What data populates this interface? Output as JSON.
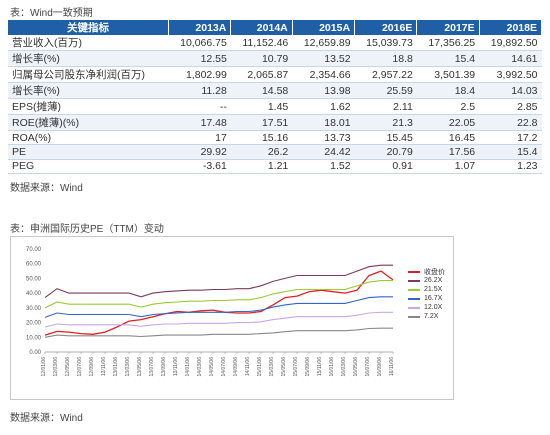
{
  "caption_table": "表：Wind一致预期",
  "table": {
    "headers": [
      "关键指标",
      "2013A",
      "2014A",
      "2015A",
      "2016E",
      "2017E",
      "2018E"
    ],
    "rows": [
      [
        "营业收入(百万)",
        "10,066.75",
        "11,152.46",
        "12,659.89",
        "15,039.73",
        "17,356.25",
        "19,892.50"
      ],
      [
        "增长率(%)",
        "12.55",
        "10.79",
        "13.52",
        "18.8",
        "15.4",
        "14.61"
      ],
      [
        "归属母公司股东净利润(百万)",
        "1,802.99",
        "2,065.87",
        "2,354.66",
        "2,957.22",
        "3,501.39",
        "3,992.50"
      ],
      [
        "增长率(%)",
        "11.28",
        "14.58",
        "13.98",
        "25.59",
        "18.4",
        "14.03"
      ],
      [
        "EPS(摊薄)",
        "--",
        "1.45",
        "1.62",
        "2.11",
        "2.5",
        "2.85"
      ],
      [
        "ROE(摊薄)(%)",
        "17.48",
        "17.51",
        "18.01",
        "21.3",
        "22.05",
        "22.8"
      ],
      [
        "ROA(%)",
        "17",
        "15.16",
        "13.73",
        "15.45",
        "16.45",
        "17.2"
      ],
      [
        "PE",
        "29.92",
        "26.2",
        "24.42",
        "20.79",
        "17.56",
        "15.4"
      ],
      [
        "PEG",
        "-3.61",
        "1.21",
        "1.52",
        "0.91",
        "1.07",
        "1.23"
      ]
    ]
  },
  "source1": "数据来源：Wind",
  "caption_chart": "表：申洲国际历史PE（TTM）变动",
  "source2": "数据来源：Wind",
  "colors": {
    "header_bg": "#1f5fa6",
    "close": "#e02020",
    "pe262": "#7a3a5a",
    "pe215": "#9acc33",
    "pe167": "#3366cc",
    "pe120": "#c9a8e8",
    "pe72": "#888888"
  },
  "chart_data": {
    "type": "line",
    "title": "",
    "xlabel": "",
    "ylabel": "",
    "ylim": [
      0,
      70
    ],
    "yticks": [
      "0.00",
      "10.00",
      "20.00",
      "30.00",
      "40.00",
      "50.00",
      "60.00",
      "70.00"
    ],
    "x": [
      "12/01/06",
      "12/03/06",
      "12/05/06",
      "12/07/06",
      "12/09/06",
      "12/11/06",
      "13/01/06",
      "13/03/06",
      "13/05/06",
      "13/07/06",
      "13/09/06",
      "13/11/06",
      "14/01/06",
      "14/03/06",
      "14/05/06",
      "14/07/06",
      "14/09/06",
      "14/11/06",
      "15/01/06",
      "15/03/06",
      "15/05/06",
      "15/07/06",
      "15/09/06",
      "15/11/06",
      "16/01/06",
      "16/03/06",
      "16/05/06",
      "16/07/06",
      "16/09/06",
      "16/11/06"
    ],
    "series": [
      {
        "name": "收盘价",
        "color": "#e02020",
        "values": [
          11.5,
          14.0,
          13.5,
          12.5,
          12.0,
          13.5,
          17.0,
          21.0,
          22.0,
          24.0,
          26.0,
          27.5,
          27.0,
          28.0,
          28.5,
          27.0,
          26.5,
          26.5,
          27.5,
          32.0,
          37.0,
          38.0,
          41.0,
          42.0,
          41.0,
          40.0,
          42.0,
          52.0,
          55.0,
          49.0
        ]
      },
      {
        "name": "26.2X",
        "color": "#7a3a5a",
        "values": [
          37.0,
          43.0,
          40.0,
          40.0,
          40.0,
          40.0,
          40.0,
          40.0,
          37.5,
          40.0,
          41.0,
          41.5,
          42.0,
          42.0,
          42.5,
          42.5,
          43.0,
          43.0,
          45.0,
          48.0,
          50.0,
          52.0,
          52.0,
          52.0,
          52.0,
          52.0,
          55.0,
          58.0,
          59.0,
          59.0
        ]
      },
      {
        "name": "21.5X",
        "color": "#9acc33",
        "values": [
          30.0,
          34.0,
          32.5,
          32.5,
          32.5,
          32.5,
          32.5,
          32.5,
          30.5,
          32.5,
          33.5,
          34.0,
          34.5,
          34.5,
          35.0,
          35.0,
          35.5,
          35.5,
          37.0,
          39.5,
          41.0,
          42.5,
          42.5,
          42.5,
          42.5,
          42.5,
          45.0,
          47.5,
          48.5,
          48.5
        ]
      },
      {
        "name": "16.7X",
        "color": "#3366cc",
        "values": [
          23.5,
          26.5,
          25.5,
          25.5,
          25.5,
          25.5,
          25.5,
          25.5,
          24.0,
          25.5,
          26.0,
          26.5,
          27.0,
          27.0,
          27.0,
          27.0,
          27.5,
          27.5,
          28.5,
          30.5,
          32.0,
          33.0,
          33.0,
          33.0,
          33.0,
          33.0,
          35.0,
          37.0,
          37.5,
          37.5
        ]
      },
      {
        "name": "12.0X",
        "color": "#c9a8e8",
        "values": [
          17.0,
          19.0,
          18.5,
          18.5,
          18.5,
          18.5,
          18.5,
          18.5,
          17.5,
          18.5,
          19.0,
          19.0,
          19.5,
          19.5,
          19.5,
          19.5,
          20.0,
          20.0,
          20.5,
          22.0,
          23.0,
          24.0,
          24.0,
          24.0,
          24.0,
          24.0,
          25.0,
          26.5,
          27.0,
          27.0
        ]
      },
      {
        "name": "7.2X",
        "color": "#888888",
        "values": [
          10.0,
          11.5,
          11.0,
          11.0,
          11.0,
          11.0,
          11.0,
          11.0,
          10.5,
          11.0,
          11.5,
          11.5,
          11.5,
          11.5,
          12.0,
          12.0,
          12.0,
          12.0,
          12.5,
          13.0,
          13.8,
          14.5,
          14.5,
          14.5,
          14.5,
          14.5,
          15.0,
          16.0,
          16.2,
          16.2
        ]
      }
    ],
    "legend_position": "right",
    "grid": false
  }
}
